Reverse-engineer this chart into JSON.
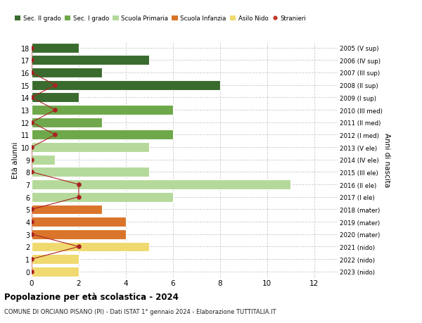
{
  "ages": [
    18,
    17,
    16,
    15,
    14,
    13,
    12,
    11,
    10,
    9,
    8,
    7,
    6,
    5,
    4,
    3,
    2,
    1,
    0
  ],
  "years": [
    "2005 (V sup)",
    "2006 (IV sup)",
    "2007 (III sup)",
    "2008 (II sup)",
    "2009 (I sup)",
    "2010 (III med)",
    "2011 (II med)",
    "2012 (I med)",
    "2013 (V ele)",
    "2014 (IV ele)",
    "2015 (III ele)",
    "2016 (II ele)",
    "2017 (I ele)",
    "2018 (mater)",
    "2019 (mater)",
    "2020 (mater)",
    "2021 (nido)",
    "2022 (nido)",
    "2023 (nido)"
  ],
  "bar_values": [
    2,
    5,
    3,
    8,
    2,
    6,
    3,
    6,
    5,
    1,
    5,
    11,
    6,
    3,
    4,
    4,
    5,
    2,
    2
  ],
  "bar_colors": [
    "#3a6b2e",
    "#3a6b2e",
    "#3a6b2e",
    "#3a6b2e",
    "#3a6b2e",
    "#6fa84a",
    "#6fa84a",
    "#6fa84a",
    "#b5d99a",
    "#b5d99a",
    "#b5d99a",
    "#b5d99a",
    "#b5d99a",
    "#d9742a",
    "#d9742a",
    "#d9742a",
    "#f0d96e",
    "#f0d96e",
    "#f0d96e"
  ],
  "stranieri_x": [
    0,
    0,
    0,
    1,
    0,
    1,
    0,
    1,
    0,
    0,
    0,
    2,
    2,
    0,
    0,
    0,
    2,
    0,
    0
  ],
  "legend_labels": [
    "Sec. II grado",
    "Sec. I grado",
    "Scuola Primaria",
    "Scuola Infanzia",
    "Asilo Nido",
    "Stranieri"
  ],
  "legend_colors": [
    "#3a6b2e",
    "#6fa84a",
    "#b5d99a",
    "#d9742a",
    "#f0d96e",
    "#c0392b"
  ],
  "title": "Popolazione per età scolastica - 2024",
  "subtitle": "COMUNE DI ORCIANO PISANO (PI) - Dati ISTAT 1° gennaio 2024 - Elaborazione TUTTITALIA.IT",
  "ylabel_left": "Età alunni",
  "ylabel_right": "Anni di nascita",
  "xlim": [
    0,
    12
  ],
  "background_color": "#ffffff",
  "grid_color": "#cccccc",
  "stranieri_color": "#aa2222",
  "stranieri_line_color": "#aa2222"
}
